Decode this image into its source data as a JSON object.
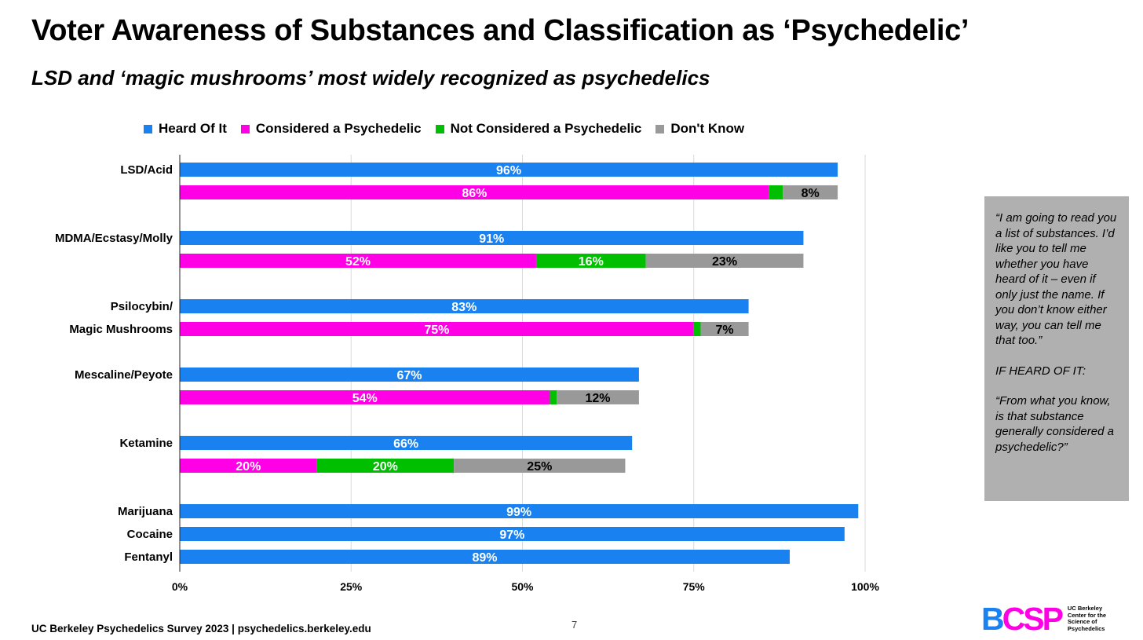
{
  "header": {
    "title": "Voter Awareness of Substances and Classification as ‘Psychedelic’",
    "subtitle": "LSD and ‘magic mushrooms’ most widely recognized as psychedelics"
  },
  "colors": {
    "heard": "#1a81f0",
    "psychedelic": "#ff00e6",
    "not_psychedelic": "#00bf00",
    "dont_know": "#999999",
    "note_box": "#b0b0b0"
  },
  "chart_data": {
    "type": "bar",
    "orientation": "horizontal",
    "stacked": true,
    "legend_position": "top",
    "grid": true,
    "xlim": [
      0,
      100
    ],
    "x_ticks": [
      "0%",
      "25%",
      "50%",
      "75%",
      "100%"
    ],
    "series_names": [
      "Heard Of It",
      "Considered a Psychedelic",
      "Not Considered a Psychedelic",
      "Don't Know"
    ],
    "groups": [
      {
        "label_lines": [
          "LSD/Acid"
        ],
        "heard": 96,
        "heard_label": "96%",
        "segments": [
          {
            "series": "psychedelic",
            "value": 86,
            "label": "86%"
          },
          {
            "series": "not_psychedelic",
            "value": 2,
            "label": ""
          },
          {
            "series": "dont_know",
            "value": 8,
            "label": "8%"
          }
        ]
      },
      {
        "label_lines": [
          "MDMA/Ecstasy/Molly"
        ],
        "heard": 91,
        "heard_label": "91%",
        "segments": [
          {
            "series": "psychedelic",
            "value": 52,
            "label": "52%"
          },
          {
            "series": "not_psychedelic",
            "value": 16,
            "label": "16%"
          },
          {
            "series": "dont_know",
            "value": 23,
            "label": "23%"
          }
        ]
      },
      {
        "label_lines": [
          "Psilocybin/",
          "Magic Mushrooms"
        ],
        "heard": 83,
        "heard_label": "83%",
        "segments": [
          {
            "series": "psychedelic",
            "value": 75,
            "label": "75%"
          },
          {
            "series": "not_psychedelic",
            "value": 1,
            "label": ""
          },
          {
            "series": "dont_know",
            "value": 7,
            "label": "7%"
          }
        ]
      },
      {
        "label_lines": [
          "Mescaline/Peyote"
        ],
        "heard": 67,
        "heard_label": "67%",
        "segments": [
          {
            "series": "psychedelic",
            "value": 54,
            "label": "54%"
          },
          {
            "series": "not_psychedelic",
            "value": 1,
            "label": ""
          },
          {
            "series": "dont_know",
            "value": 12,
            "label": "12%"
          }
        ]
      },
      {
        "label_lines": [
          "Ketamine"
        ],
        "heard": 66,
        "heard_label": "66%",
        "segments": [
          {
            "series": "psychedelic",
            "value": 20,
            "label": "20%"
          },
          {
            "series": "not_psychedelic",
            "value": 20,
            "label": "20%"
          },
          {
            "series": "dont_know",
            "value": 25,
            "label": "25%"
          }
        ]
      },
      {
        "label_lines": [
          "Marijuana"
        ],
        "heard": 99,
        "heard_label": "99%",
        "segments": []
      },
      {
        "label_lines": [
          "Cocaine"
        ],
        "heard": 97,
        "heard_label": "97%",
        "segments": []
      },
      {
        "label_lines": [
          "Fentanyl"
        ],
        "heard": 89,
        "heard_label": "89%",
        "segments": []
      }
    ]
  },
  "note": {
    "question1": "“I am going to read you a list of substances. I’d like you to tell me whether you have heard of it – even if only just the name. If you don’t know either way, you can tell me that too.”",
    "condition": "IF HEARD OF IT:",
    "question2": "“From what you know, is that substance generally considered a psychedelic?”"
  },
  "footer": {
    "source": "UC Berkeley Psychedelics Survey 2023 | psychedelics.berkeley.edu",
    "page_number": "7"
  },
  "logo": {
    "mark_b": "B",
    "mark_csp": "CSP",
    "text_lines": [
      "UC Berkeley",
      "Center for the",
      "Science of",
      "Psychedelics"
    ]
  }
}
